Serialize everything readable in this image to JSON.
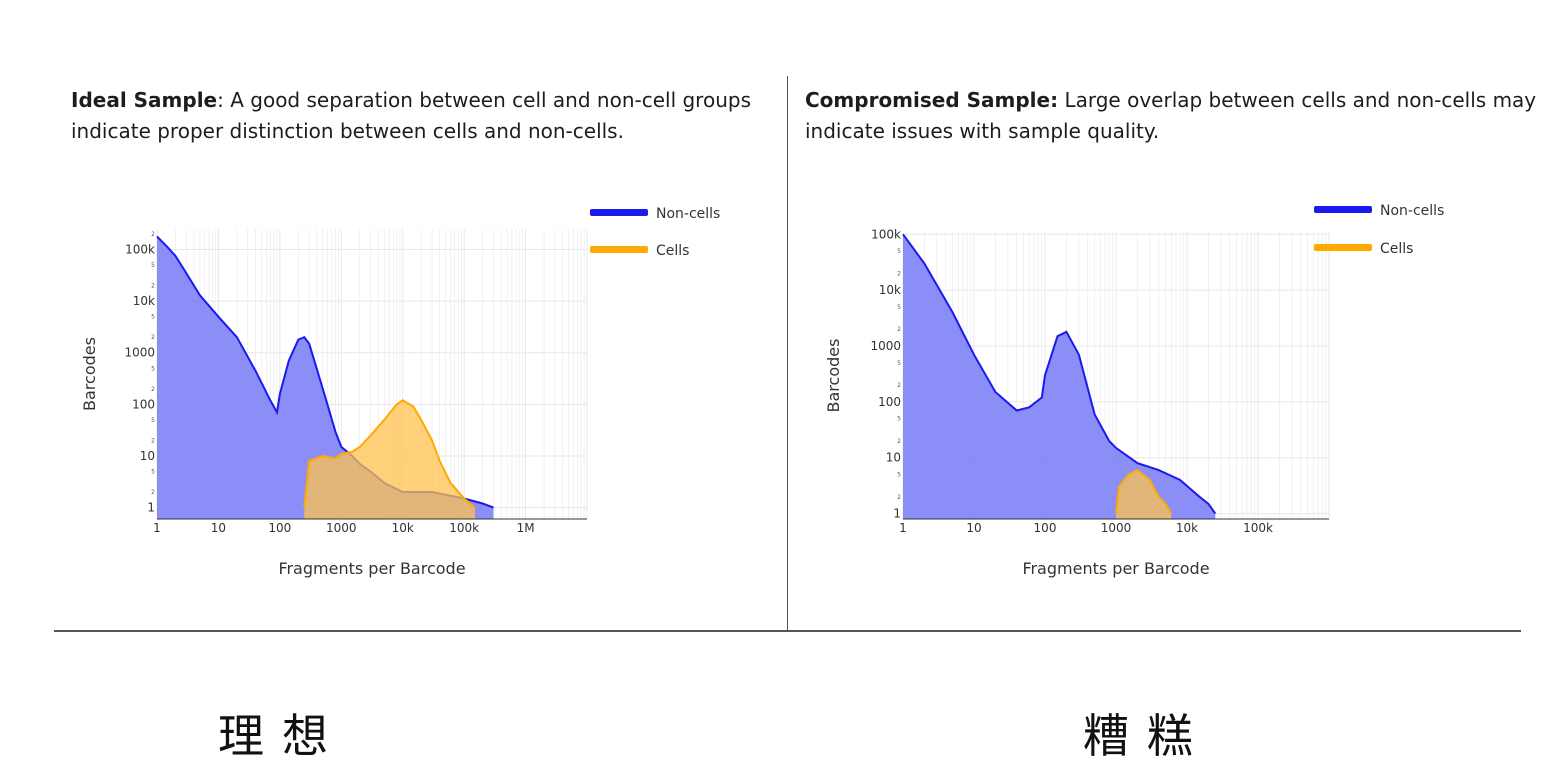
{
  "panels": [
    {
      "heading_bold": "Ideal Sample",
      "heading_text": ": A good separation between cell and non-cell groups indicate proper distinction between cells and non-cells.",
      "caption": "理想"
    },
    {
      "heading_bold": "Compromised Sample:",
      "heading_text": " Large overlap between cells and non-cells may indicate issues with sample quality.",
      "caption": "糟糕"
    }
  ],
  "colors": {
    "non_cells": "#1a1aee",
    "non_cells_fill": "#7d82f5",
    "cells": "#ffaa00",
    "cells_fill": "#ffc24d",
    "grid": "#e8e8e8"
  },
  "chart_data": [
    {
      "type": "area",
      "xlabel": "Fragments per Barcode",
      "ylabel": "Barcodes",
      "xscale": "log",
      "yscale": "log",
      "xlim": [
        1,
        10000000
      ],
      "ylim": [
        0.6,
        250000
      ],
      "grid": true,
      "legend_position": "top-right",
      "x_ticks": [
        {
          "v": 1,
          "label": "1"
        },
        {
          "v": 10,
          "label": "10"
        },
        {
          "v": 100,
          "label": "100"
        },
        {
          "v": 1000,
          "label": "1000"
        },
        {
          "v": 10000,
          "label": "10k"
        },
        {
          "v": 100000,
          "label": "100k"
        },
        {
          "v": 1000000,
          "label": "1M"
        }
      ],
      "y_ticks": [
        {
          "v": 1,
          "label": "1"
        },
        {
          "v": 10,
          "label": "10"
        },
        {
          "v": 100,
          "label": "100"
        },
        {
          "v": 1000,
          "label": "1000"
        },
        {
          "v": 10000,
          "label": "10k"
        },
        {
          "v": 100000,
          "label": "100k"
        }
      ],
      "y_minor_labels": [
        "2",
        "5"
      ],
      "series": [
        {
          "name": "Non-cells",
          "points": [
            [
              1,
              180000
            ],
            [
              1.5,
              110000
            ],
            [
              2,
              75000
            ],
            [
              3,
              35000
            ],
            [
              5,
              13000
            ],
            [
              10,
              5000
            ],
            [
              20,
              2000
            ],
            [
              40,
              450
            ],
            [
              70,
              120
            ],
            [
              90,
              70
            ],
            [
              100,
              160
            ],
            [
              140,
              700
            ],
            [
              200,
              1800
            ],
            [
              250,
              2000
            ],
            [
              300,
              1500
            ],
            [
              500,
              200
            ],
            [
              800,
              30
            ],
            [
              1000,
              15
            ],
            [
              1500,
              10
            ],
            [
              2000,
              7
            ],
            [
              3000,
              5
            ],
            [
              5000,
              3
            ],
            [
              10000,
              2
            ],
            [
              30000,
              2
            ],
            [
              100000,
              1.5
            ],
            [
              200000,
              1.2
            ],
            [
              300000,
              1
            ]
          ]
        },
        {
          "name": "Cells",
          "points": [
            [
              250,
              1
            ],
            [
              300,
              8
            ],
            [
              500,
              10
            ],
            [
              800,
              9
            ],
            [
              1000,
              11
            ],
            [
              1500,
              12
            ],
            [
              2000,
              15
            ],
            [
              3000,
              25
            ],
            [
              5000,
              50
            ],
            [
              8000,
              100
            ],
            [
              10000,
              120
            ],
            [
              15000,
              90
            ],
            [
              20000,
              50
            ],
            [
              30000,
              20
            ],
            [
              40000,
              8
            ],
            [
              60000,
              3
            ],
            [
              100000,
              1.5
            ],
            [
              150000,
              1
            ]
          ]
        }
      ]
    },
    {
      "type": "area",
      "xlabel": "Fragments per Barcode",
      "ylabel": "Barcodes",
      "xscale": "log",
      "yscale": "log",
      "xlim": [
        1,
        1000000
      ],
      "ylim": [
        0.8,
        110000
      ],
      "grid": true,
      "legend_position": "top-right",
      "x_ticks": [
        {
          "v": 1,
          "label": "1"
        },
        {
          "v": 10,
          "label": "10"
        },
        {
          "v": 100,
          "label": "100"
        },
        {
          "v": 1000,
          "label": "1000"
        },
        {
          "v": 10000,
          "label": "10k"
        },
        {
          "v": 100000,
          "label": "100k"
        }
      ],
      "y_ticks": [
        {
          "v": 1,
          "label": "1"
        },
        {
          "v": 10,
          "label": "10"
        },
        {
          "v": 100,
          "label": "100"
        },
        {
          "v": 1000,
          "label": "1000"
        },
        {
          "v": 10000,
          "label": "10k"
        },
        {
          "v": 100000,
          "label": "100k"
        }
      ],
      "y_minor_labels": [
        "2",
        "5"
      ],
      "series": [
        {
          "name": "Non-cells",
          "points": [
            [
              1,
              100000
            ],
            [
              2,
              30000
            ],
            [
              5,
              4000
            ],
            [
              10,
              700
            ],
            [
              20,
              150
            ],
            [
              40,
              70
            ],
            [
              60,
              80
            ],
            [
              90,
              120
            ],
            [
              100,
              300
            ],
            [
              150,
              1500
            ],
            [
              200,
              1800
            ],
            [
              300,
              700
            ],
            [
              500,
              60
            ],
            [
              800,
              20
            ],
            [
              1000,
              15
            ],
            [
              2000,
              8
            ],
            [
              4000,
              6
            ],
            [
              8000,
              4
            ],
            [
              15000,
              2
            ],
            [
              20000,
              1.5
            ],
            [
              25000,
              1
            ]
          ]
        },
        {
          "name": "Cells",
          "points": [
            [
              1000,
              1
            ],
            [
              1100,
              3
            ],
            [
              1500,
              5
            ],
            [
              2000,
              6
            ],
            [
              3000,
              4
            ],
            [
              4000,
              2
            ],
            [
              5000,
              1.5
            ],
            [
              6000,
              1
            ]
          ]
        }
      ]
    }
  ]
}
